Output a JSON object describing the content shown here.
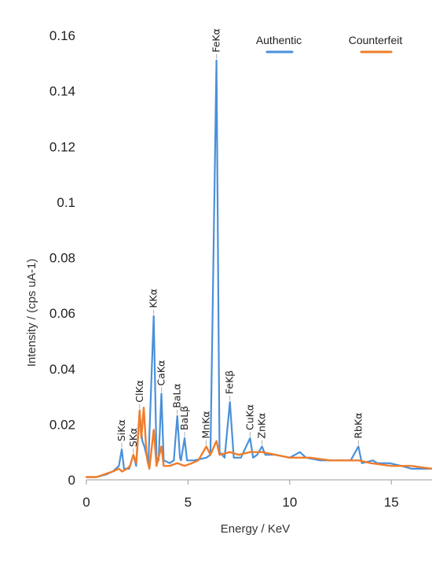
{
  "chart_data": {
    "type": "line",
    "xlabel": "Energy / KeV",
    "ylabel": "Intensity / (cps uA-1)",
    "xlim": [
      0,
      17
    ],
    "ylim": [
      0,
      0.16
    ],
    "x_ticks": [
      "0",
      "5",
      "10",
      "15"
    ],
    "y_ticks": [
      "0",
      "0.02",
      "0.04",
      "0.06",
      "0.08",
      "0.1",
      "0.12",
      "0.14",
      "0.16"
    ],
    "grid": false,
    "legend_position": "top-right",
    "colors": {
      "Authentic": "#4a90d9",
      "Counterfeit": "#ef7d2b"
    },
    "series": [
      {
        "name": "Authentic",
        "points": [
          [
            0,
            0.001
          ],
          [
            0.5,
            0.001
          ],
          [
            1.0,
            0.002
          ],
          [
            1.3,
            0.003
          ],
          [
            1.6,
            0.005
          ],
          [
            1.74,
            0.011
          ],
          [
            1.85,
            0.004
          ],
          [
            2.1,
            0.004
          ],
          [
            2.31,
            0.009
          ],
          [
            2.45,
            0.005
          ],
          [
            2.62,
            0.024
          ],
          [
            2.75,
            0.014
          ],
          [
            2.85,
            0.012
          ],
          [
            3.05,
            0.006
          ],
          [
            3.31,
            0.059
          ],
          [
            3.45,
            0.008
          ],
          [
            3.55,
            0.007
          ],
          [
            3.69,
            0.031
          ],
          [
            3.8,
            0.007
          ],
          [
            4.1,
            0.006
          ],
          [
            4.3,
            0.007
          ],
          [
            4.47,
            0.023
          ],
          [
            4.6,
            0.008
          ],
          [
            4.65,
            0.007
          ],
          [
            4.83,
            0.015
          ],
          [
            4.95,
            0.007
          ],
          [
            5.3,
            0.007
          ],
          [
            5.9,
            0.008
          ],
          [
            6.1,
            0.009
          ],
          [
            6.4,
            0.151
          ],
          [
            6.55,
            0.01
          ],
          [
            6.8,
            0.008
          ],
          [
            7.06,
            0.028
          ],
          [
            7.25,
            0.008
          ],
          [
            7.6,
            0.008
          ],
          [
            8.05,
            0.015
          ],
          [
            8.2,
            0.008
          ],
          [
            8.4,
            0.009
          ],
          [
            8.64,
            0.012
          ],
          [
            8.8,
            0.009
          ],
          [
            9.3,
            0.009
          ],
          [
            10.0,
            0.008
          ],
          [
            10.5,
            0.01
          ],
          [
            10.8,
            0.008
          ],
          [
            11.5,
            0.007
          ],
          [
            12.5,
            0.007
          ],
          [
            13.0,
            0.007
          ],
          [
            13.38,
            0.012
          ],
          [
            13.55,
            0.006
          ],
          [
            14.1,
            0.007
          ],
          [
            14.3,
            0.006
          ],
          [
            14.9,
            0.006
          ],
          [
            15.5,
            0.005
          ],
          [
            16.0,
            0.004
          ],
          [
            17.0,
            0.004
          ]
        ]
      },
      {
        "name": "Counterfeit",
        "points": [
          [
            0,
            0.001
          ],
          [
            0.5,
            0.001
          ],
          [
            0.9,
            0.002
          ],
          [
            1.3,
            0.003
          ],
          [
            1.6,
            0.004
          ],
          [
            1.75,
            0.003
          ],
          [
            2.0,
            0.004
          ],
          [
            2.15,
            0.005
          ],
          [
            2.31,
            0.009
          ],
          [
            2.45,
            0.006
          ],
          [
            2.62,
            0.025
          ],
          [
            2.7,
            0.015
          ],
          [
            2.82,
            0.026
          ],
          [
            2.95,
            0.01
          ],
          [
            3.0,
            0.007
          ],
          [
            3.1,
            0.004
          ],
          [
            3.31,
            0.018
          ],
          [
            3.45,
            0.005
          ],
          [
            3.69,
            0.012
          ],
          [
            3.8,
            0.005
          ],
          [
            4.1,
            0.005
          ],
          [
            4.47,
            0.006
          ],
          [
            4.83,
            0.005
          ],
          [
            5.2,
            0.006
          ],
          [
            5.5,
            0.007
          ],
          [
            5.9,
            0.012
          ],
          [
            6.1,
            0.009
          ],
          [
            6.4,
            0.014
          ],
          [
            6.55,
            0.009
          ],
          [
            7.06,
            0.01
          ],
          [
            7.5,
            0.009
          ],
          [
            8.05,
            0.01
          ],
          [
            8.64,
            0.01
          ],
          [
            9.3,
            0.009
          ],
          [
            10.0,
            0.008
          ],
          [
            11.0,
            0.008
          ],
          [
            12.0,
            0.007
          ],
          [
            13.0,
            0.007
          ],
          [
            13.4,
            0.007
          ],
          [
            14.0,
            0.006
          ],
          [
            15.0,
            0.005
          ],
          [
            16.0,
            0.005
          ],
          [
            17.0,
            0.004
          ]
        ]
      }
    ],
    "annotations": [
      {
        "text": "SiKα",
        "x": 1.74,
        "y": 0.011
      },
      {
        "text": "SKα",
        "x": 2.31,
        "y": 0.009
      },
      {
        "text": "ClKα",
        "x": 2.62,
        "y": 0.025
      },
      {
        "text": "KKα",
        "x": 3.31,
        "y": 0.059
      },
      {
        "text": "CaKα",
        "x": 3.69,
        "y": 0.031
      },
      {
        "text": "BaLα",
        "x": 4.47,
        "y": 0.023
      },
      {
        "text": "BaLβ",
        "x": 4.83,
        "y": 0.015
      },
      {
        "text": "MnKα",
        "x": 5.9,
        "y": 0.012
      },
      {
        "text": "FeKα",
        "x": 6.4,
        "y": 0.151
      },
      {
        "text": "FeKβ",
        "x": 7.06,
        "y": 0.028
      },
      {
        "text": "CuKα",
        "x": 8.05,
        "y": 0.015
      },
      {
        "text": "ZnKα",
        "x": 8.64,
        "y": 0.012
      },
      {
        "text": "RbKα",
        "x": 13.38,
        "y": 0.012
      }
    ]
  }
}
